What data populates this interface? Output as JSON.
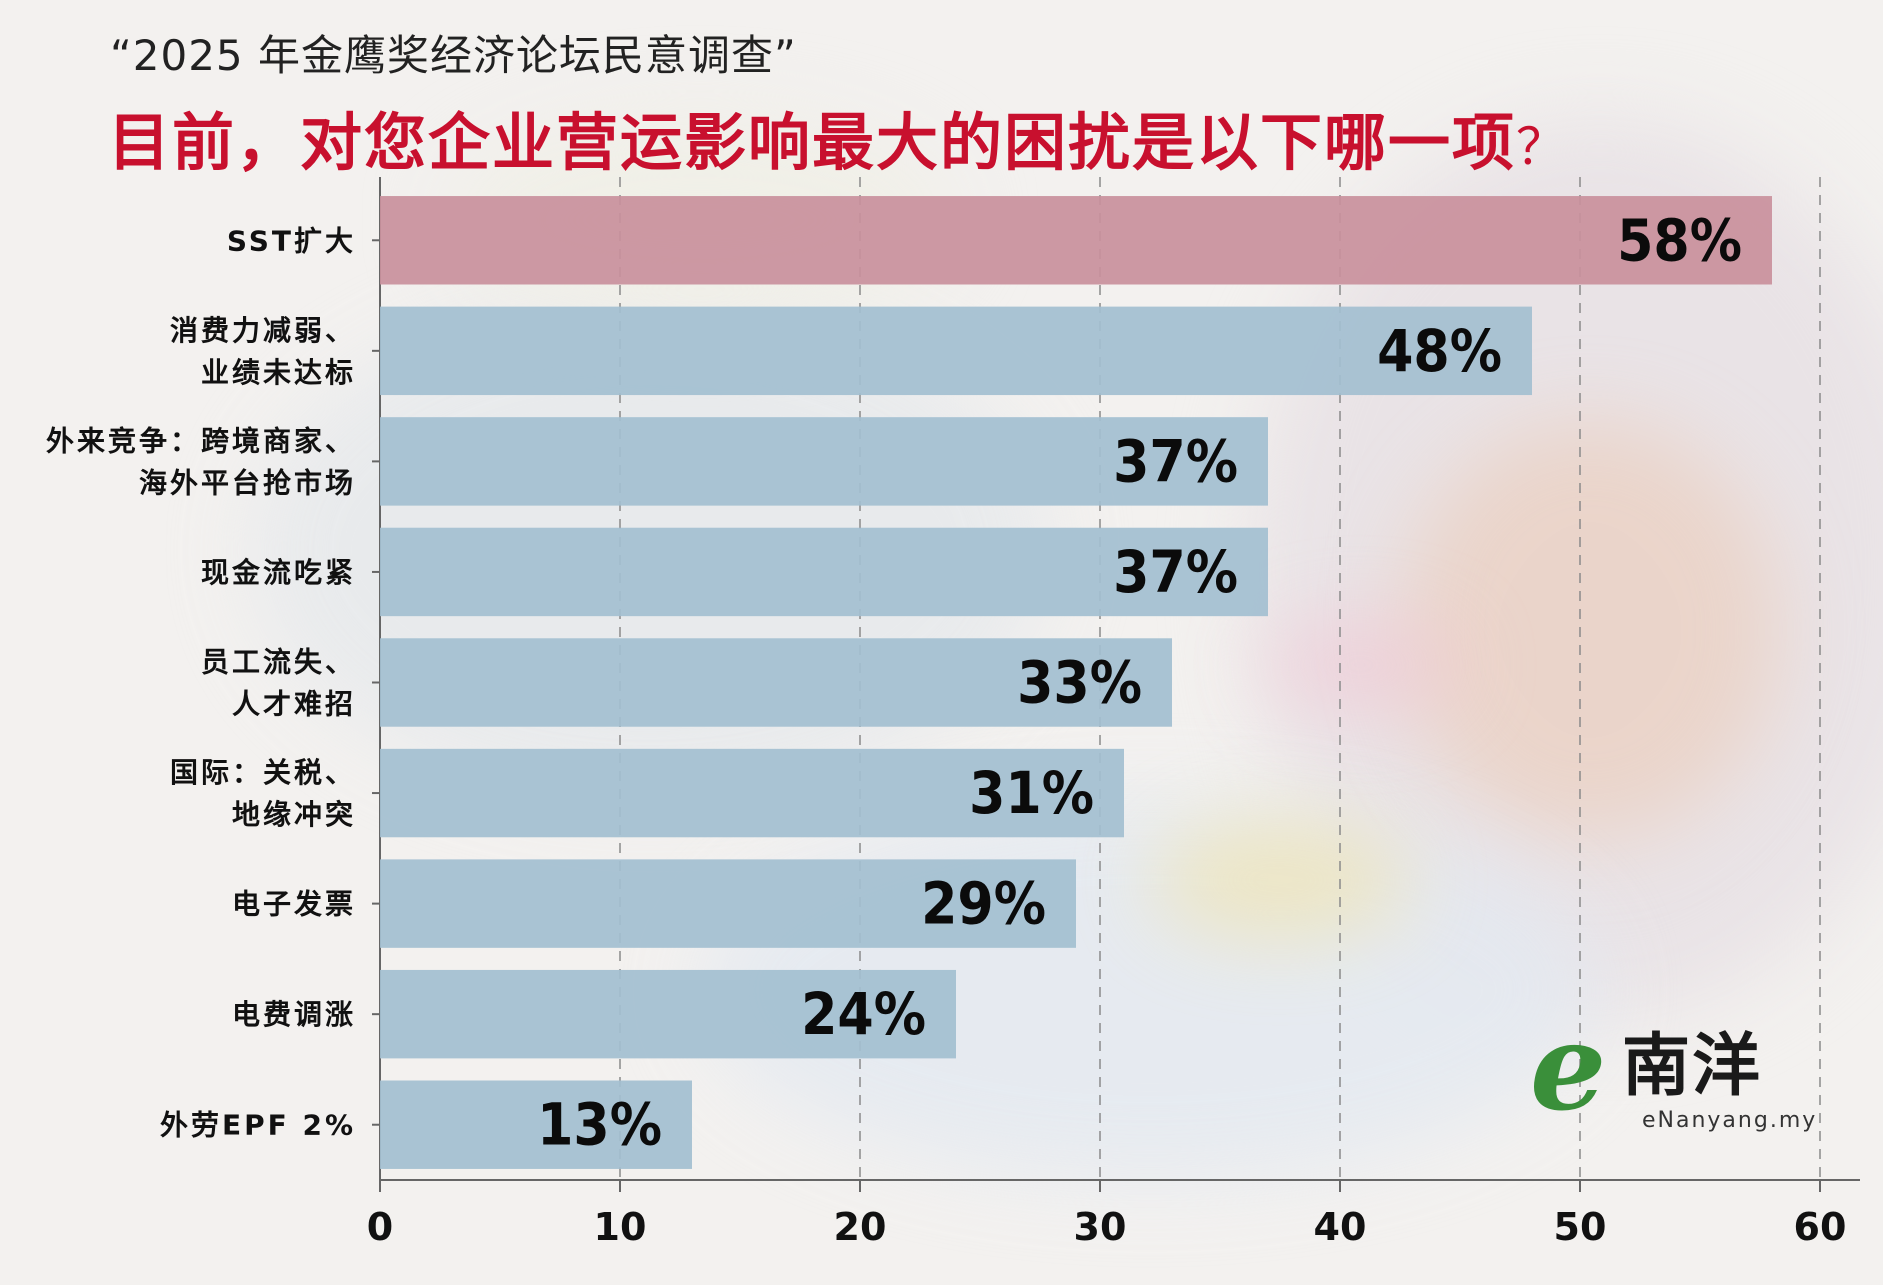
{
  "header": {
    "subtitle": "“2025 年金鹰奖经济论坛民意调查”",
    "title": "目前，对您企业营运影响最大的困扰是以下哪一项",
    "title_mark": "？"
  },
  "chart_data": {
    "type": "bar",
    "orientation": "horizontal",
    "categories": [
      [
        "SST扩大"
      ],
      [
        "消费力减弱、",
        "业绩未达标"
      ],
      [
        "外来竞争：跨境商家、",
        "海外平台抢市场"
      ],
      [
        "现金流吃紧"
      ],
      [
        "员工流失、",
        "人才难招"
      ],
      [
        "国际：关税、",
        "地缘冲突"
      ],
      [
        "电子发票"
      ],
      [
        "电费调涨"
      ],
      [
        "外劳EPF 2%"
      ]
    ],
    "values": [
      58,
      48,
      37,
      37,
      33,
      31,
      29,
      24,
      13
    ],
    "value_labels": [
      "58%",
      "48%",
      "37%",
      "37%",
      "33%",
      "31%",
      "29%",
      "24%",
      "13%"
    ],
    "xlim": [
      0,
      60
    ],
    "xticks": [
      0,
      10,
      20,
      30,
      40,
      50,
      60
    ],
    "xtick_labels": [
      "0",
      "10",
      "20",
      "30",
      "40",
      "50",
      "60"
    ],
    "grid": "vertical dashed",
    "colors": {
      "highlight": "#c9909c",
      "default": "#a3bfd0",
      "title": "#c8102e"
    }
  },
  "logo": {
    "mark": "e",
    "name": "南洋",
    "url": "eNanyang.my"
  }
}
